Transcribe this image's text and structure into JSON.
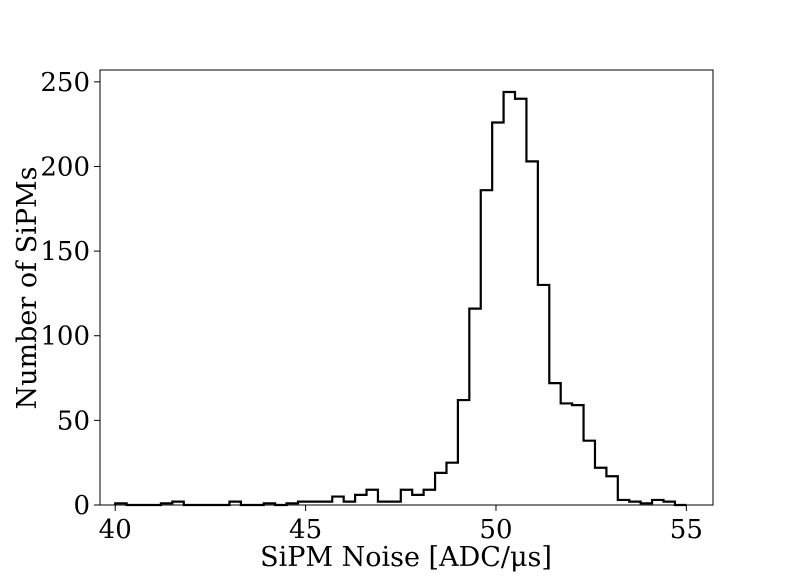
{
  "chart_data": {
    "type": "bar",
    "style": "step-histogram",
    "xlabel": "SiPM Noise [ADC/μs]",
    "ylabel": "Number of SiPMs",
    "xlim": [
      39.6,
      55.7
    ],
    "ylim": [
      0,
      257
    ],
    "xticks": [
      40,
      45,
      50,
      55
    ],
    "yticks": [
      0,
      50,
      100,
      150,
      200,
      250
    ],
    "grid": false,
    "line_color": "#000000",
    "bin_edges": [
      40.0,
      40.3,
      40.6,
      40.9,
      41.2,
      41.5,
      41.8,
      42.1,
      42.4,
      42.7,
      43.0,
      43.3,
      43.6,
      43.9,
      44.2,
      44.5,
      44.8,
      45.1,
      45.4,
      45.7,
      46.0,
      46.3,
      46.6,
      46.9,
      47.2,
      47.5,
      47.8,
      48.1,
      48.4,
      48.7,
      49.0,
      49.3,
      49.6,
      49.9,
      50.2,
      50.5,
      50.8,
      51.1,
      51.4,
      51.7,
      52.0,
      52.3,
      52.6,
      52.9,
      53.2,
      53.5,
      53.8,
      54.1,
      54.4,
      54.7,
      55.0
    ],
    "counts": [
      1,
      0,
      0,
      0,
      1,
      2,
      0,
      0,
      0,
      0,
      2,
      0,
      0,
      1,
      0,
      1,
      2,
      2,
      2,
      5,
      2,
      6,
      9,
      2,
      2,
      9,
      6,
      9,
      19,
      25,
      62,
      116,
      186,
      226,
      244,
      240,
      203,
      130,
      72,
      60,
      59,
      38,
      22,
      17,
      3,
      2,
      1,
      3,
      2,
      0
    ]
  }
}
